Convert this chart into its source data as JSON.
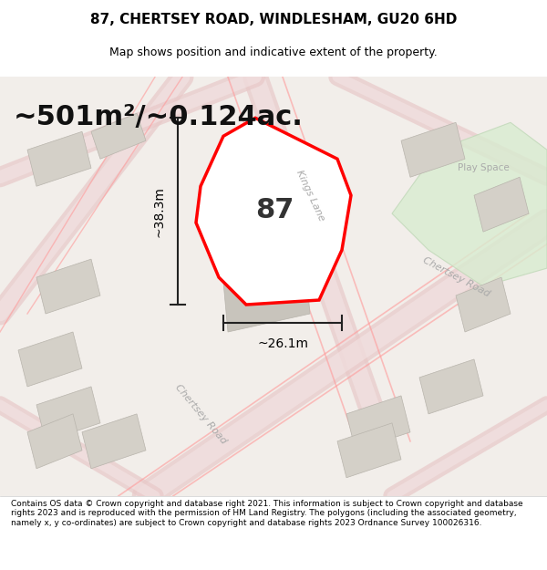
{
  "title": "87, CHERTSEY ROAD, WINDLESHAM, GU20 6HD",
  "subtitle": "Map shows position and indicative extent of the property.",
  "area_text": "~501m²/~0.124ac.",
  "width_label": "~26.1m",
  "height_label": "~38.3m",
  "property_number": "87",
  "footer_text": "Contains OS data © Crown copyright and database right 2021. This information is subject to Crown copyright and database rights 2023 and is reproduced with the permission of HM Land Registry. The polygons (including the associated geometry, namely x, y co-ordinates) are subject to Crown copyright and database rights 2023 Ordnance Survey 100026316.",
  "bg_color": "#f5f3f0",
  "map_bg": "#f0eeeb",
  "road_color": "#e8c8c8",
  "property_fill": "#ffffff",
  "property_stroke": "#ff0000",
  "green_area": "#d4e8d0",
  "building_fill": "#d8d4cc",
  "title_color": "#000000",
  "subtitle_color": "#000000",
  "footer_color": "#000000",
  "label_color": "#888888",
  "dim_color": "#000000"
}
